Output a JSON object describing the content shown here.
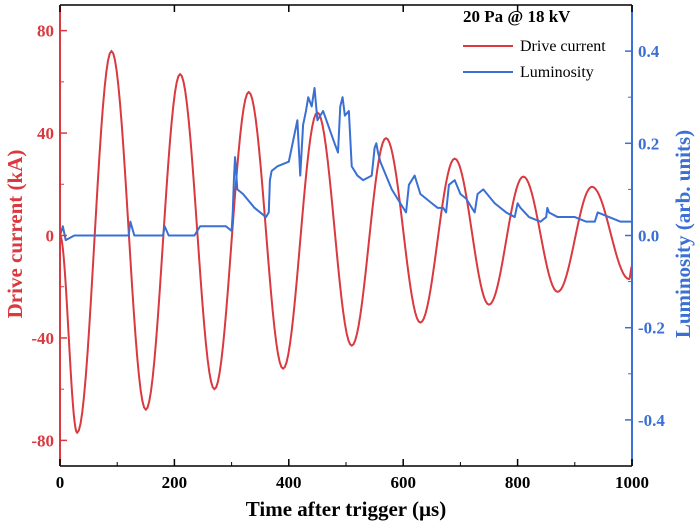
{
  "chart_data": {
    "type": "line",
    "title": "",
    "legend": {
      "title": "20 Pa @ 18 kV",
      "position": "top-right",
      "entries": [
        "Drive current",
        "Luminosity"
      ]
    },
    "xlabel": "Time after trigger (µs)",
    "ylabel_left": "Drive current (kA)",
    "ylabel_right": "Luminosity (arb. units)",
    "xlim": [
      0,
      1000
    ],
    "ylim_left": [
      -90,
      90
    ],
    "ylim_right": [
      -0.5,
      0.5
    ],
    "x_ticks": [
      "0",
      "200",
      "400",
      "600",
      "800",
      "1000"
    ],
    "y_ticks_left": [
      "-80",
      "-40",
      "0",
      "40",
      "80"
    ],
    "y_ticks_right": [
      "-0.4",
      "-0.2",
      "0.0",
      "0.2",
      "0.4"
    ],
    "colors": {
      "current": "#d9393f",
      "luminosity": "#3a6fd3",
      "axis": "#000000"
    },
    "series": [
      {
        "name": "Drive current",
        "axis": "left",
        "x": [
          0,
          30,
          90,
          150,
          210,
          270,
          330,
          390,
          450,
          510,
          570,
          630,
          690,
          750,
          810,
          870,
          930,
          995,
          1000
        ],
        "values": [
          0,
          -77,
          72,
          -68,
          63,
          -60,
          56,
          -52,
          48,
          -43,
          38,
          -34,
          30,
          -27,
          23,
          -22,
          19,
          -17,
          -12
        ]
      },
      {
        "name": "Luminosity",
        "axis": "right",
        "x": [
          0,
          5,
          10,
          25,
          60,
          110,
          120,
          123,
          130,
          175,
          180,
          183,
          190,
          235,
          240,
          245,
          290,
          300,
          302,
          304,
          306,
          310,
          320,
          340,
          350,
          360,
          365,
          367,
          370,
          380,
          400,
          410,
          415,
          420,
          425,
          430,
          434,
          440,
          445,
          450,
          460,
          480,
          486,
          490,
          494,
          498,
          505,
          510,
          520,
          530,
          545,
          550,
          553,
          556,
          560,
          580,
          600,
          605,
          610,
          620,
          630,
          650,
          660,
          670,
          675,
          680,
          690,
          700,
          710,
          720,
          725,
          730,
          740,
          760,
          780,
          795,
          800,
          805,
          820,
          840,
          850,
          852,
          855,
          870,
          900,
          920,
          935,
          940,
          960,
          980,
          1000
        ],
        "values": [
          0.0,
          0.02,
          -0.01,
          0.0,
          0.0,
          0.0,
          0.0,
          0.03,
          0.0,
          0.0,
          0.0,
          0.02,
          0.0,
          0.0,
          0.01,
          0.02,
          0.02,
          0.01,
          0.05,
          0.12,
          0.17,
          0.1,
          0.09,
          0.06,
          0.05,
          0.04,
          0.05,
          0.12,
          0.14,
          0.15,
          0.16,
          0.22,
          0.25,
          0.13,
          0.24,
          0.27,
          0.3,
          0.28,
          0.32,
          0.25,
          0.27,
          0.2,
          0.18,
          0.28,
          0.3,
          0.26,
          0.27,
          0.15,
          0.13,
          0.12,
          0.13,
          0.19,
          0.2,
          0.18,
          0.16,
          0.1,
          0.06,
          0.05,
          0.11,
          0.13,
          0.09,
          0.07,
          0.06,
          0.06,
          0.05,
          0.11,
          0.12,
          0.09,
          0.08,
          0.06,
          0.05,
          0.09,
          0.1,
          0.07,
          0.05,
          0.04,
          0.07,
          0.06,
          0.04,
          0.03,
          0.04,
          0.06,
          0.05,
          0.04,
          0.04,
          0.03,
          0.03,
          0.05,
          0.04,
          0.03,
          0.03
        ]
      }
    ]
  }
}
